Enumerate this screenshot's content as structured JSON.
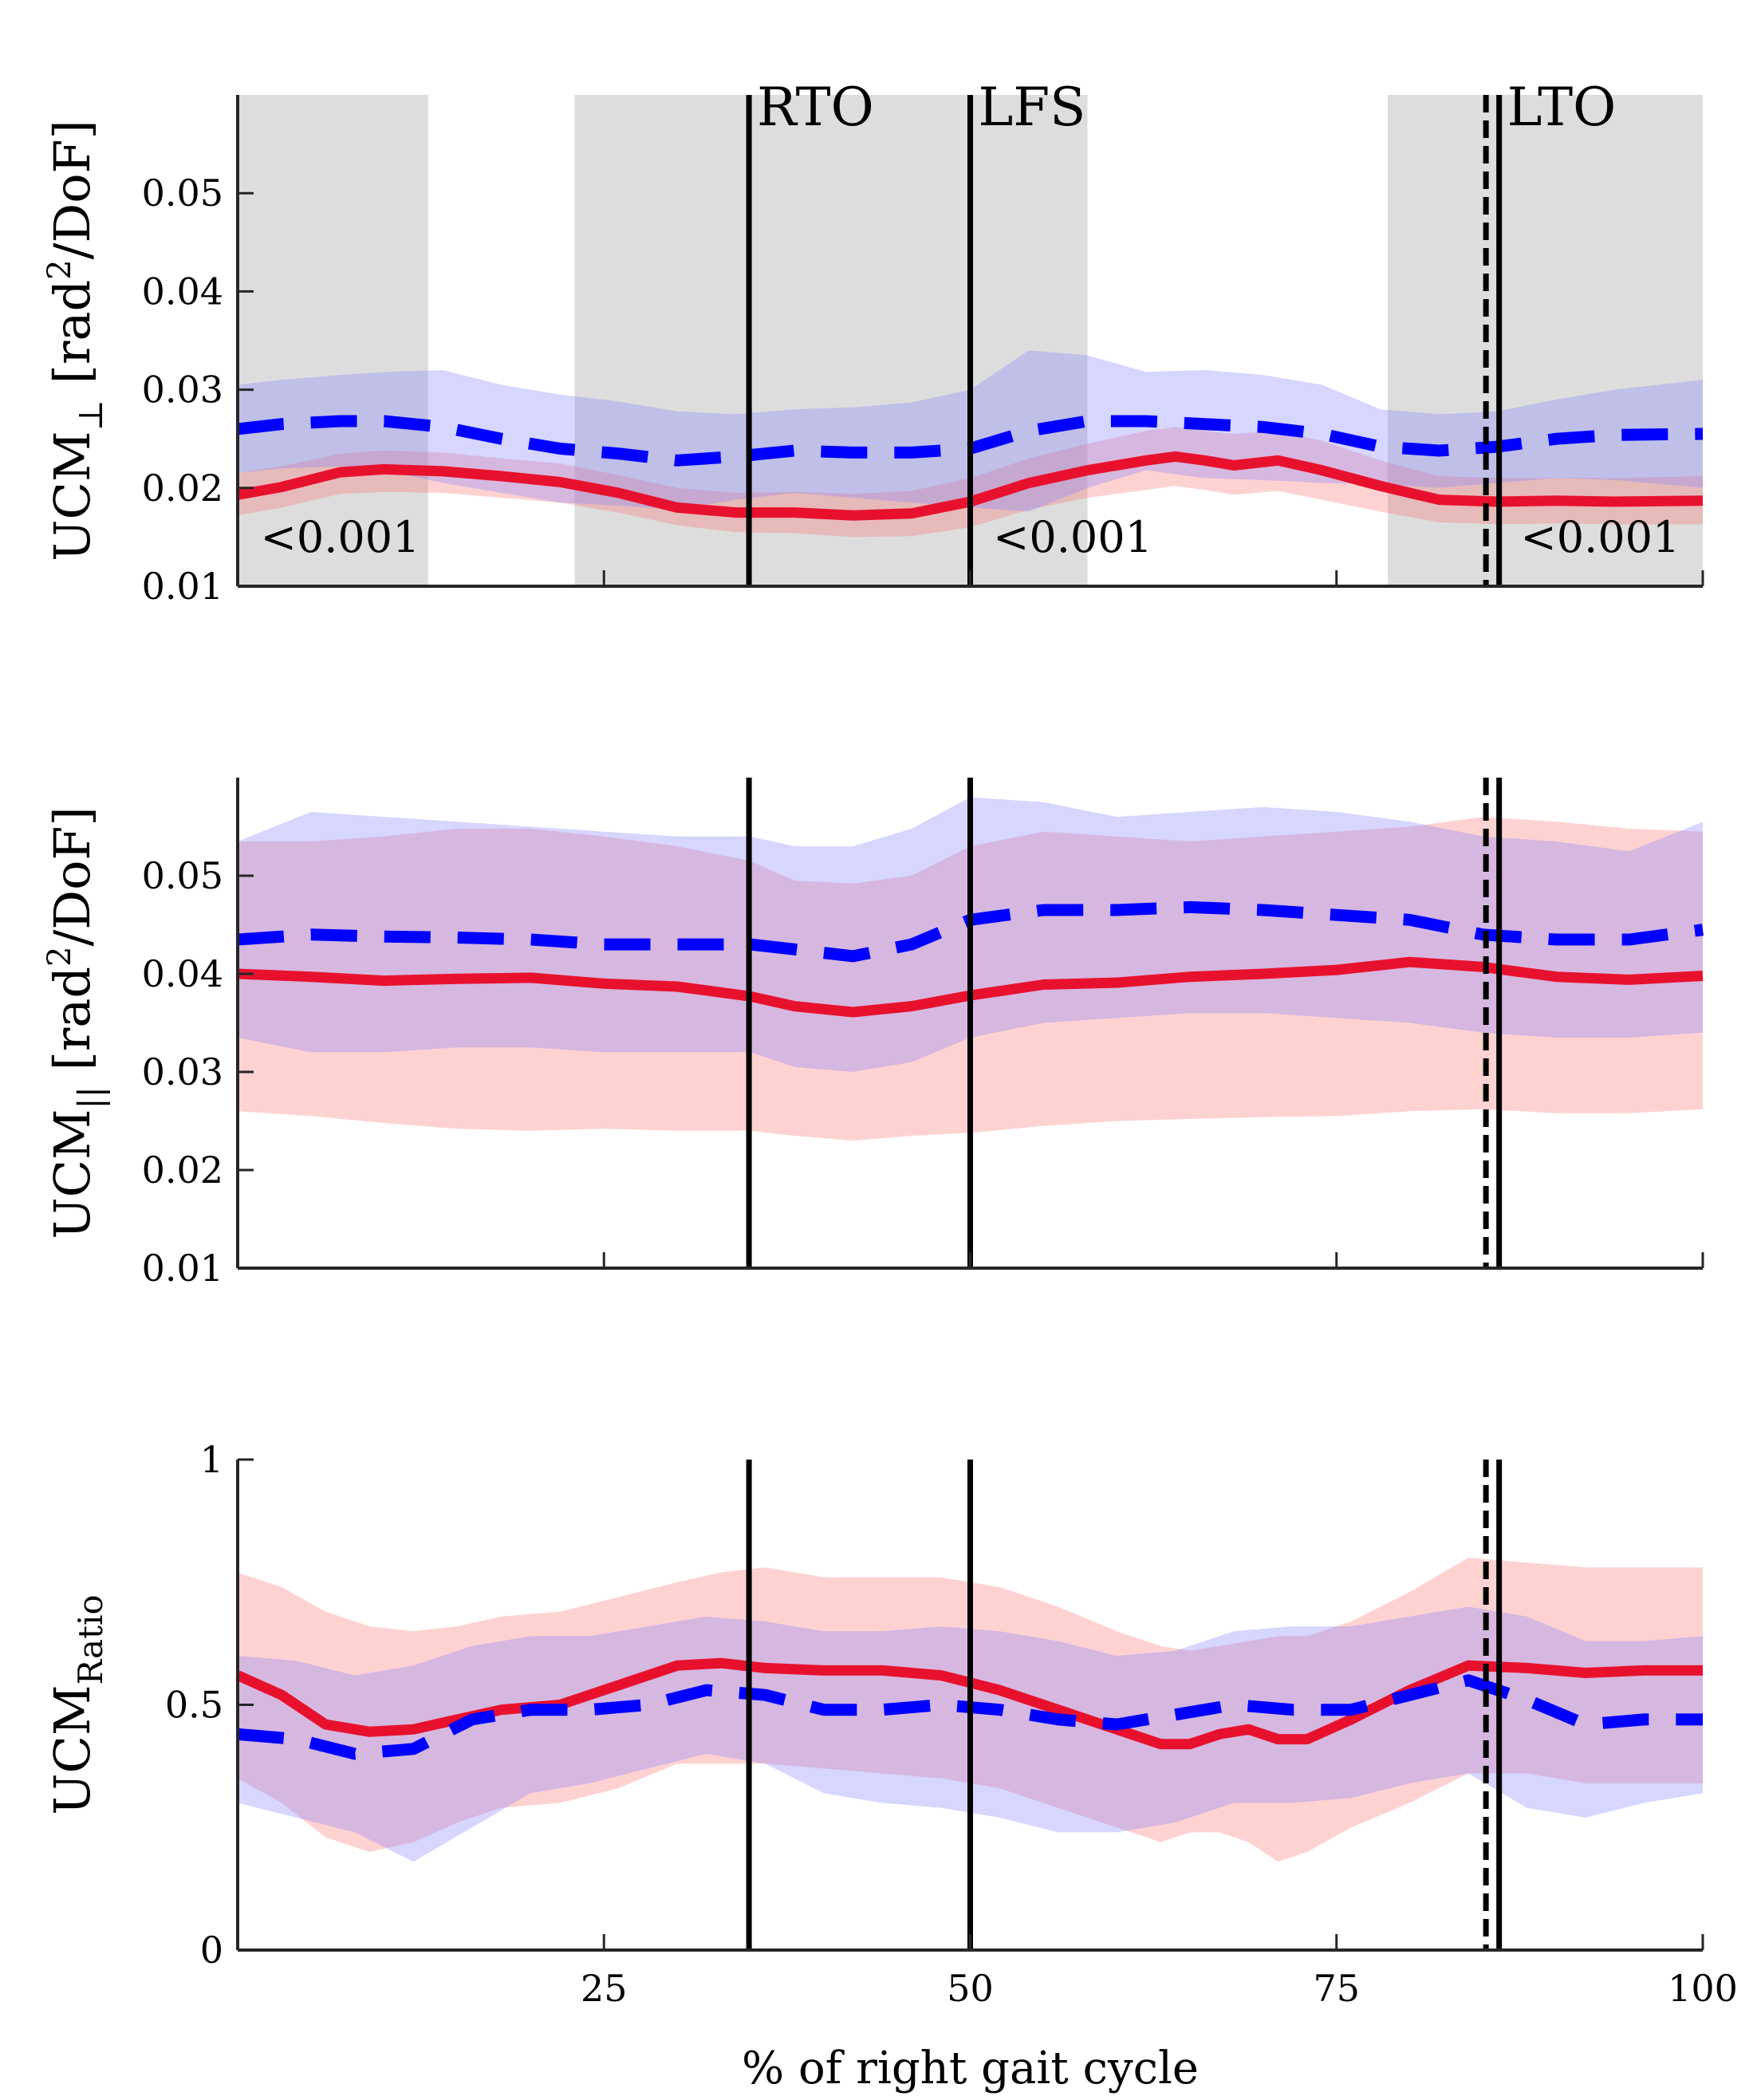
{
  "chart_data": [
    {
      "id": "perp",
      "type": "line",
      "ylabel": {
        "main": "UCM",
        "sub": "⊥",
        "unit_pre": " [rad",
        "unit_sup": "2",
        "unit_post": "/DoF]"
      },
      "ylim": [
        0.01,
        0.06
      ],
      "yticks": [
        0.01,
        0.02,
        0.03,
        0.04,
        0.05
      ],
      "ytick_labels": [
        "0.01",
        "0.02",
        "0.03",
        "0.04",
        "0.05"
      ],
      "xlim": [
        0,
        100
      ],
      "xticks": [
        25,
        50,
        75,
        100
      ],
      "show_xtick_labels": false,
      "significance_regions": [
        [
          0,
          13
        ],
        [
          23,
          58
        ],
        [
          78.5,
          100
        ]
      ],
      "pvalues": [
        {
          "x": 7,
          "y": 0.0135,
          "text": "<0.001"
        },
        {
          "x": 57,
          "y": 0.0135,
          "text": "<0.001"
        },
        {
          "x": 93,
          "y": 0.0135,
          "text": "<0.001"
        }
      ],
      "series": [
        {
          "name": "red-group",
          "color": "#e8112d",
          "dashed": false,
          "x": [
            0,
            3,
            7,
            10,
            14,
            18,
            22,
            26,
            30,
            34,
            38,
            42,
            46,
            50,
            54,
            58,
            62,
            64,
            66,
            68,
            71,
            74,
            78,
            82,
            86,
            90,
            94,
            100
          ],
          "mean": [
            0.0193,
            0.0201,
            0.0216,
            0.0219,
            0.0217,
            0.0212,
            0.0206,
            0.0195,
            0.018,
            0.0175,
            0.0175,
            0.0172,
            0.0174,
            0.0186,
            0.0205,
            0.0218,
            0.0228,
            0.0232,
            0.0228,
            0.0223,
            0.0228,
            0.0218,
            0.0202,
            0.0188,
            0.0186,
            0.0187,
            0.0186,
            0.0187
          ],
          "upper": [
            0.0215,
            0.0222,
            0.0235,
            0.0238,
            0.0236,
            0.023,
            0.0225,
            0.0213,
            0.02,
            0.0195,
            0.0196,
            0.0194,
            0.0197,
            0.021,
            0.023,
            0.0245,
            0.0258,
            0.0262,
            0.0258,
            0.0255,
            0.0258,
            0.0248,
            0.0228,
            0.0212,
            0.021,
            0.021,
            0.021,
            0.0212
          ],
          "lower": [
            0.0172,
            0.018,
            0.0194,
            0.0196,
            0.0195,
            0.019,
            0.0185,
            0.0175,
            0.0162,
            0.0155,
            0.0154,
            0.015,
            0.0151,
            0.016,
            0.0178,
            0.019,
            0.0198,
            0.0202,
            0.0198,
            0.0193,
            0.0197,
            0.0188,
            0.0176,
            0.0165,
            0.0163,
            0.0164,
            0.0163,
            0.0163
          ]
        },
        {
          "name": "blue-group",
          "color": "#0000ff",
          "dashed": true,
          "x": [
            0,
            3,
            7,
            10,
            14,
            18,
            22,
            26,
            30,
            34,
            38,
            42,
            46,
            50,
            54,
            58,
            62,
            66,
            70,
            74,
            78,
            82,
            86,
            90,
            94,
            100
          ],
          "mean": [
            0.026,
            0.0265,
            0.0268,
            0.0268,
            0.0262,
            0.025,
            0.024,
            0.0235,
            0.0228,
            0.0232,
            0.0238,
            0.0236,
            0.0236,
            0.024,
            0.0258,
            0.0268,
            0.0268,
            0.0265,
            0.0262,
            0.0255,
            0.0242,
            0.0238,
            0.0242,
            0.025,
            0.0254,
            0.0255
          ],
          "upper": [
            0.0305,
            0.031,
            0.0315,
            0.0318,
            0.032,
            0.0305,
            0.0295,
            0.0288,
            0.0278,
            0.0275,
            0.028,
            0.0282,
            0.0287,
            0.03,
            0.034,
            0.0335,
            0.0318,
            0.032,
            0.0315,
            0.0305,
            0.028,
            0.0275,
            0.0278,
            0.029,
            0.03,
            0.031
          ],
          "lower": [
            0.0215,
            0.022,
            0.0222,
            0.0218,
            0.0205,
            0.0195,
            0.0185,
            0.0182,
            0.0178,
            0.0188,
            0.0195,
            0.019,
            0.0185,
            0.018,
            0.0176,
            0.02,
            0.0218,
            0.021,
            0.0208,
            0.0205,
            0.0204,
            0.02,
            0.0205,
            0.021,
            0.0208,
            0.02
          ]
        }
      ]
    },
    {
      "id": "parallel",
      "type": "line",
      "ylabel": {
        "main": "UCM",
        "sub": "||",
        "unit_pre": " [rad",
        "unit_sup": "2",
        "unit_post": "/DoF]"
      },
      "ylim": [
        0.01,
        0.06
      ],
      "yticks": [
        0.01,
        0.02,
        0.03,
        0.04,
        0.05
      ],
      "ytick_labels": [
        "0.01",
        "0.02",
        "0.03",
        "0.04",
        "0.05"
      ],
      "xlim": [
        0,
        100
      ],
      "xticks": [
        25,
        50,
        75,
        100
      ],
      "show_xtick_labels": false,
      "significance_regions": [],
      "pvalues": [],
      "series": [
        {
          "name": "red-group",
          "color": "#e8112d",
          "dashed": false,
          "x": [
            0,
            5,
            10,
            15,
            20,
            25,
            30,
            35,
            38,
            42,
            46,
            50,
            55,
            60,
            65,
            70,
            75,
            80,
            85,
            90,
            95,
            100
          ],
          "mean": [
            0.04,
            0.0397,
            0.0393,
            0.0395,
            0.0396,
            0.039,
            0.0387,
            0.0377,
            0.0367,
            0.0361,
            0.0367,
            0.0378,
            0.0389,
            0.0391,
            0.0397,
            0.04,
            0.0404,
            0.0412,
            0.0407,
            0.0397,
            0.0394,
            0.0398
          ],
          "upper": [
            0.0535,
            0.0535,
            0.054,
            0.0548,
            0.0548,
            0.054,
            0.053,
            0.0515,
            0.0495,
            0.0492,
            0.05,
            0.053,
            0.0545,
            0.054,
            0.0535,
            0.054,
            0.0545,
            0.055,
            0.056,
            0.0555,
            0.0548,
            0.0545
          ],
          "lower": [
            0.026,
            0.0255,
            0.0248,
            0.0242,
            0.024,
            0.0242,
            0.024,
            0.024,
            0.0235,
            0.023,
            0.0235,
            0.0238,
            0.0245,
            0.025,
            0.0252,
            0.0254,
            0.0255,
            0.026,
            0.0262,
            0.0258,
            0.0258,
            0.0262
          ]
        },
        {
          "name": "blue-group",
          "color": "#0000ff",
          "dashed": true,
          "x": [
            0,
            5,
            10,
            15,
            20,
            25,
            30,
            35,
            38,
            42,
            46,
            50,
            55,
            60,
            65,
            70,
            75,
            80,
            85,
            90,
            95,
            100
          ],
          "mean": [
            0.0435,
            0.044,
            0.0438,
            0.0437,
            0.0435,
            0.043,
            0.043,
            0.043,
            0.0425,
            0.0418,
            0.043,
            0.0455,
            0.0465,
            0.0465,
            0.0468,
            0.0465,
            0.046,
            0.0455,
            0.044,
            0.0435,
            0.0435,
            0.0445
          ],
          "upper": [
            0.0535,
            0.0565,
            0.056,
            0.0555,
            0.055,
            0.0545,
            0.054,
            0.054,
            0.053,
            0.053,
            0.0548,
            0.058,
            0.0575,
            0.056,
            0.0565,
            0.057,
            0.0565,
            0.0555,
            0.054,
            0.0535,
            0.0525,
            0.0555
          ],
          "lower": [
            0.0335,
            0.032,
            0.032,
            0.0325,
            0.0325,
            0.032,
            0.032,
            0.032,
            0.0305,
            0.03,
            0.031,
            0.0335,
            0.035,
            0.0355,
            0.036,
            0.036,
            0.0355,
            0.035,
            0.034,
            0.0335,
            0.0335,
            0.034
          ]
        }
      ]
    },
    {
      "id": "ratio",
      "type": "line",
      "ylabel": {
        "main": "UCM",
        "sub": "Ratio",
        "unit_pre": "",
        "unit_sup": "",
        "unit_post": ""
      },
      "ylim": [
        0,
        1
      ],
      "yticks": [
        0,
        0.5,
        1
      ],
      "ytick_labels": [
        "0",
        "0.5",
        "1"
      ],
      "xlim": [
        0,
        100
      ],
      "xticks": [
        25,
        50,
        75,
        100
      ],
      "show_xtick_labels": true,
      "xlabel": "% of right gait cycle",
      "significance_regions": [],
      "pvalues": [],
      "series": [
        {
          "name": "red-group",
          "color": "#e8112d",
          "dashed": false,
          "x": [
            0,
            3,
            6,
            9,
            12,
            15,
            18,
            22,
            26,
            30,
            33,
            36,
            40,
            44,
            48,
            52,
            56,
            60,
            63,
            65,
            67,
            69,
            71,
            73,
            76,
            80,
            84,
            88,
            92,
            96,
            100
          ],
          "mean": [
            0.56,
            0.52,
            0.46,
            0.445,
            0.45,
            0.47,
            0.49,
            0.5,
            0.54,
            0.58,
            0.585,
            0.575,
            0.57,
            0.57,
            0.56,
            0.53,
            0.49,
            0.45,
            0.42,
            0.42,
            0.44,
            0.45,
            0.43,
            0.43,
            0.47,
            0.53,
            0.58,
            0.575,
            0.565,
            0.57,
            0.57
          ],
          "upper": [
            0.77,
            0.74,
            0.69,
            0.66,
            0.65,
            0.66,
            0.68,
            0.69,
            0.72,
            0.75,
            0.77,
            0.78,
            0.76,
            0.76,
            0.76,
            0.74,
            0.7,
            0.65,
            0.62,
            0.61,
            0.62,
            0.63,
            0.64,
            0.64,
            0.67,
            0.73,
            0.8,
            0.79,
            0.78,
            0.78,
            0.78
          ],
          "lower": [
            0.35,
            0.3,
            0.23,
            0.2,
            0.22,
            0.26,
            0.29,
            0.3,
            0.33,
            0.38,
            0.38,
            0.38,
            0.37,
            0.36,
            0.35,
            0.33,
            0.29,
            0.25,
            0.22,
            0.24,
            0.24,
            0.22,
            0.18,
            0.2,
            0.25,
            0.3,
            0.36,
            0.36,
            0.34,
            0.34,
            0.34
          ]
        },
        {
          "name": "blue-group",
          "color": "#0000ff",
          "dashed": true,
          "x": [
            0,
            4,
            8,
            12,
            16,
            20,
            24,
            28,
            32,
            36,
            40,
            44,
            48,
            52,
            56,
            60,
            64,
            68,
            72,
            76,
            80,
            84,
            88,
            92,
            96,
            100
          ],
          "mean": [
            0.44,
            0.43,
            0.4,
            0.41,
            0.47,
            0.49,
            0.49,
            0.5,
            0.53,
            0.52,
            0.49,
            0.49,
            0.5,
            0.49,
            0.47,
            0.46,
            0.48,
            0.5,
            0.49,
            0.49,
            0.52,
            0.55,
            0.51,
            0.46,
            0.47,
            0.47
          ],
          "upper": [
            0.6,
            0.59,
            0.56,
            0.58,
            0.62,
            0.64,
            0.64,
            0.66,
            0.68,
            0.67,
            0.65,
            0.65,
            0.66,
            0.65,
            0.63,
            0.6,
            0.61,
            0.65,
            0.66,
            0.66,
            0.68,
            0.7,
            0.68,
            0.63,
            0.63,
            0.64
          ],
          "lower": [
            0.3,
            0.27,
            0.24,
            0.18,
            0.25,
            0.32,
            0.34,
            0.37,
            0.4,
            0.38,
            0.32,
            0.3,
            0.29,
            0.27,
            0.24,
            0.24,
            0.26,
            0.3,
            0.3,
            0.31,
            0.34,
            0.36,
            0.29,
            0.27,
            0.3,
            0.32
          ]
        }
      ]
    }
  ],
  "events": [
    {
      "x": 34.9,
      "label": "RTO",
      "style": "solid"
    },
    {
      "x": 50,
      "label": "LFS",
      "style": "solid"
    },
    {
      "x": 85.2,
      "label": "",
      "style": "dashed"
    },
    {
      "x": 86.1,
      "label": "LTO",
      "style": "solid"
    }
  ],
  "colors": {
    "red": "#e8112d",
    "blue": "#0000ff",
    "red_band": "#ff6b6b",
    "blue_band": "#8080ff",
    "significance": "#dddddd"
  }
}
